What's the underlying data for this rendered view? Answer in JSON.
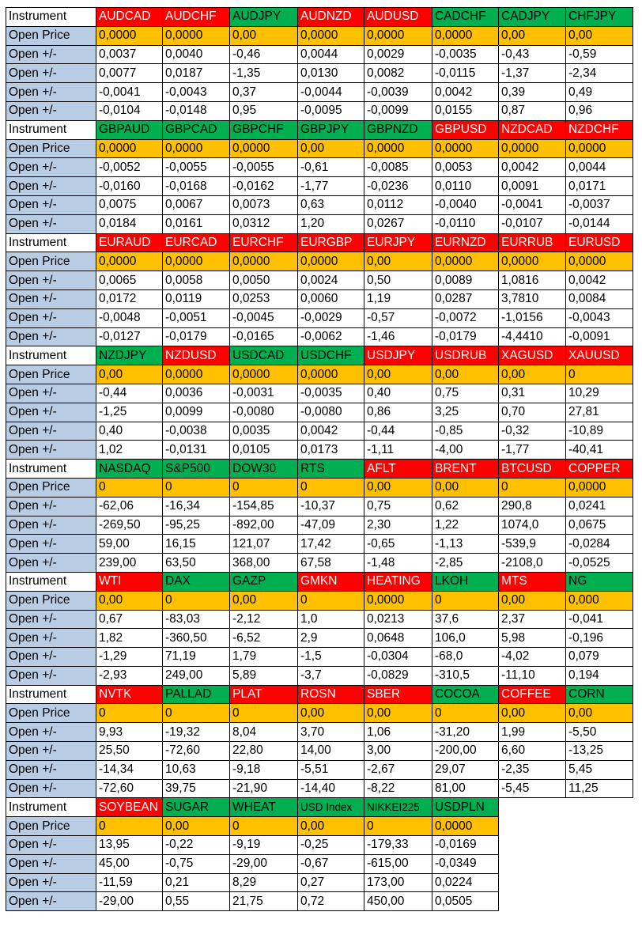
{
  "colors": {
    "red": "#ff0000",
    "green": "#00b050",
    "open_price_bg": "#ffc000",
    "label_bg": "#b8cce4"
  },
  "labels": {
    "instrument": "Instrument",
    "open_price": "Open Price",
    "delta": "Open +/-"
  },
  "blocks": [
    {
      "instruments": [
        {
          "name": "AUDCAD",
          "color": "red"
        },
        {
          "name": "AUDCHF",
          "color": "red"
        },
        {
          "name": "AUDJPY",
          "color": "green"
        },
        {
          "name": "AUDNZD",
          "color": "red"
        },
        {
          "name": "AUDUSD",
          "color": "red"
        },
        {
          "name": "CADCHF",
          "color": "green"
        },
        {
          "name": "CADJPY",
          "color": "green"
        },
        {
          "name": "CHFJPY",
          "color": "green"
        }
      ],
      "open": [
        "0,0000",
        "0,0000",
        "0,00",
        "0,0000",
        "0,0000",
        "0,0000",
        "0,00",
        "0,00"
      ],
      "deltas": [
        [
          "0,0037",
          "0,0040",
          "-0,46",
          "0,0044",
          "0,0029",
          "-0,0035",
          "-0,43",
          "-0,59"
        ],
        [
          "0,0077",
          "0,0187",
          "-1,35",
          "0,0130",
          "0,0082",
          "-0,0115",
          "-1,37",
          "-2,34"
        ],
        [
          "-0,0041",
          "-0,0043",
          "0,37",
          "-0,0044",
          "-0,0039",
          "0,0042",
          "0,39",
          "0,49"
        ],
        [
          "-0,0104",
          "-0,0148",
          "0,95",
          "-0,0095",
          "-0,0099",
          "0,0155",
          "0,87",
          "0,96"
        ]
      ]
    },
    {
      "instruments": [
        {
          "name": "GBPAUD",
          "color": "green"
        },
        {
          "name": "GBPCAD",
          "color": "green"
        },
        {
          "name": "GBPCHF",
          "color": "green"
        },
        {
          "name": "GBPJPY",
          "color": "green"
        },
        {
          "name": "GBPNZD",
          "color": "green"
        },
        {
          "name": "GBPUSD",
          "color": "red"
        },
        {
          "name": "NZDCAD",
          "color": "red"
        },
        {
          "name": "NZDCHF",
          "color": "red"
        }
      ],
      "open": [
        "0,0000",
        "0,0000",
        "0,0000",
        "0,00",
        "0,0000",
        "0,0000",
        "0,0000",
        "0,0000"
      ],
      "deltas": [
        [
          "-0,0052",
          "-0,0055",
          "-0,0055",
          "-0,61",
          "-0,0085",
          "0,0053",
          "0,0042",
          "0,0044"
        ],
        [
          "-0,0160",
          "-0,0168",
          "-0,0162",
          "-1,77",
          "-0,0236",
          "0,0110",
          "0,0091",
          "0,0171"
        ],
        [
          "0,0075",
          "0,0067",
          "0,0073",
          "0,63",
          "0,0112",
          "-0,0040",
          "-0,0041",
          "-0,0037"
        ],
        [
          "0,0184",
          "0,0161",
          "0,0312",
          "1,20",
          "0,0267",
          "-0,0110",
          "-0,0107",
          "-0,0144"
        ]
      ]
    },
    {
      "instruments": [
        {
          "name": "EURAUD",
          "color": "red"
        },
        {
          "name": "EURCAD",
          "color": "red"
        },
        {
          "name": "EURCHF",
          "color": "red"
        },
        {
          "name": "EURGBP",
          "color": "red"
        },
        {
          "name": "EURJPY",
          "color": "red"
        },
        {
          "name": "EURNZD",
          "color": "red"
        },
        {
          "name": "EURRUB",
          "color": "red"
        },
        {
          "name": "EURUSD",
          "color": "red"
        }
      ],
      "open": [
        "0,0000",
        "0,0000",
        "0,0000",
        "0,0000",
        "0,00",
        "0,0000",
        "0,0000",
        "0,0000"
      ],
      "deltas": [
        [
          "0,0065",
          "0,0058",
          "0,0050",
          "0,0024",
          "0,50",
          "0,0089",
          "1,0816",
          "0,0042"
        ],
        [
          "0,0172",
          "0,0119",
          "0,0253",
          "0,0060",
          "1,19",
          "0,0287",
          "3,7810",
          "0,0084"
        ],
        [
          "-0,0048",
          "-0,0051",
          "-0,0045",
          "-0,0029",
          "-0,57",
          "-0,0072",
          "-1,0156",
          "-0,0043"
        ],
        [
          "-0,0127",
          "-0,0179",
          "-0,0165",
          "-0,0062",
          "-1,46",
          "-0,0179",
          "-4,4410",
          "-0,0091"
        ]
      ]
    },
    {
      "instruments": [
        {
          "name": "NZDJPY",
          "color": "green"
        },
        {
          "name": "NZDUSD",
          "color": "red"
        },
        {
          "name": "USDCAD",
          "color": "green"
        },
        {
          "name": "USDCHF",
          "color": "green"
        },
        {
          "name": "USDJPY",
          "color": "red"
        },
        {
          "name": "USDRUB",
          "color": "red"
        },
        {
          "name": "XAGUSD",
          "color": "red"
        },
        {
          "name": "XAUUSD",
          "color": "red"
        }
      ],
      "open": [
        "0,00",
        "0,0000",
        "0,0000",
        "0,0000",
        "0,00",
        "0,00",
        "0,00",
        "0"
      ],
      "deltas": [
        [
          "-0,44",
          "0,0036",
          "-0,0031",
          "-0,0035",
          "0,40",
          "0,75",
          "0,31",
          "10,29"
        ],
        [
          "-1,25",
          "0,0099",
          "-0,0080",
          "-0,0080",
          "0,86",
          "3,25",
          "0,70",
          "27,81"
        ],
        [
          "0,40",
          "-0,0038",
          "0,0035",
          "0,0042",
          "-0,44",
          "-0,85",
          "-0,32",
          "-10,89"
        ],
        [
          "1,02",
          "-0,0131",
          "0,0105",
          "0,0173",
          "-1,11",
          "-4,00",
          "-1,77",
          "-40,41"
        ]
      ]
    },
    {
      "instruments": [
        {
          "name": "NASDAQ",
          "color": "green"
        },
        {
          "name": "S&P500",
          "color": "green"
        },
        {
          "name": "DOW30",
          "color": "green"
        },
        {
          "name": "RTS",
          "color": "green"
        },
        {
          "name": "AFLT",
          "color": "red"
        },
        {
          "name": "BRENT",
          "color": "red"
        },
        {
          "name": "BTCUSD",
          "color": "red"
        },
        {
          "name": "COPPER",
          "color": "red"
        }
      ],
      "open": [
        "0",
        "0",
        "0",
        "0",
        "0,00",
        "0,00",
        "0",
        "0,0000"
      ],
      "deltas": [
        [
          "-62,06",
          "-16,34",
          "-154,85",
          "-10,37",
          "0,75",
          "0,62",
          "290,8",
          "0,0241"
        ],
        [
          "-269,50",
          "-95,25",
          "-892,00",
          "-47,09",
          "2,30",
          "1,22",
          "1074,0",
          "0,0675"
        ],
        [
          "59,00",
          "16,15",
          "121,07",
          "17,42",
          "-0,65",
          "-1,13",
          "-539,9",
          "-0,0284"
        ],
        [
          "239,00",
          "63,50",
          "368,00",
          "67,58",
          "-1,48",
          "-2,85",
          "-2108,0",
          "-0,0525"
        ]
      ]
    },
    {
      "instruments": [
        {
          "name": "WTI",
          "color": "red"
        },
        {
          "name": "DAX",
          "color": "green"
        },
        {
          "name": "GAZP",
          "color": "green"
        },
        {
          "name": "GMKN",
          "color": "red"
        },
        {
          "name": "HEATING",
          "color": "red"
        },
        {
          "name": "LKOH",
          "color": "green"
        },
        {
          "name": "MTS",
          "color": "red"
        },
        {
          "name": "NG",
          "color": "green"
        }
      ],
      "open": [
        "0,00",
        "0",
        "0,00",
        "0",
        "0,0000",
        "0",
        "0,00",
        "0,000"
      ],
      "deltas": [
        [
          "0,67",
          "-83,03",
          "-2,12",
          "1,0",
          "0,0213",
          "37,6",
          "2,37",
          "-0,041"
        ],
        [
          "1,82",
          "-360,50",
          "-6,52",
          "2,9",
          "0,0648",
          "106,0",
          "5,98",
          "-0,196"
        ],
        [
          "-1,29",
          "71,19",
          "1,79",
          "-1,5",
          "-0,0304",
          "-68,0",
          "-4,02",
          "0,079"
        ],
        [
          "-2,93",
          "249,00",
          "5,89",
          "-3,7",
          "-0,0829",
          "-310,5",
          "-11,10",
          "0,194"
        ]
      ]
    },
    {
      "instruments": [
        {
          "name": "NVTK",
          "color": "red"
        },
        {
          "name": "PALLAD",
          "color": "green"
        },
        {
          "name": "PLAT",
          "color": "red"
        },
        {
          "name": "ROSN",
          "color": "red"
        },
        {
          "name": "SBER",
          "color": "red"
        },
        {
          "name": "COCOA",
          "color": "green"
        },
        {
          "name": "COFFEE",
          "color": "red"
        },
        {
          "name": "CORN",
          "color": "green"
        }
      ],
      "open": [
        "0",
        "0",
        "0",
        "0,00",
        "0,00",
        "0",
        "0,00",
        "0,00"
      ],
      "deltas": [
        [
          "9,93",
          "-19,32",
          "8,04",
          "3,70",
          "1,06",
          "-31,20",
          "1,99",
          "-5,50"
        ],
        [
          "25,50",
          "-72,60",
          "22,80",
          "14,00",
          "3,00",
          "-200,00",
          "6,60",
          "-13,25"
        ],
        [
          "-14,34",
          "10,63",
          "-9,18",
          "-5,51",
          "-2,67",
          "29,07",
          "-2,35",
          "5,45"
        ],
        [
          "-72,60",
          "39,75",
          "-21,90",
          "-14,40",
          "-8,22",
          "81,00",
          "-5,45",
          "11,25"
        ]
      ]
    },
    {
      "instruments": [
        {
          "name": "SOYBEAN",
          "color": "red"
        },
        {
          "name": "SUGAR",
          "color": "green"
        },
        {
          "name": "WHEAT",
          "color": "green"
        },
        {
          "name": "USD Index",
          "color": "green"
        },
        {
          "name": "NIKKEI225",
          "color": "green"
        },
        {
          "name": "USDPLN",
          "color": "green"
        }
      ],
      "open": [
        "0",
        "0,00",
        "0",
        "0,00",
        "0",
        "0,0000"
      ],
      "deltas": [
        [
          "13,95",
          "-0,22",
          "-9,19",
          "-0,25",
          "-179,33",
          "-0,0169"
        ],
        [
          "45,00",
          "-0,75",
          "-29,00",
          "-0,67",
          "-615,00",
          "-0,0349"
        ],
        [
          "-11,59",
          "0,21",
          "8,29",
          "0,27",
          "173,00",
          "0,0224"
        ],
        [
          "-29,00",
          "0,55",
          "21,75",
          "0,72",
          "450,00",
          "0,0505"
        ]
      ]
    }
  ]
}
